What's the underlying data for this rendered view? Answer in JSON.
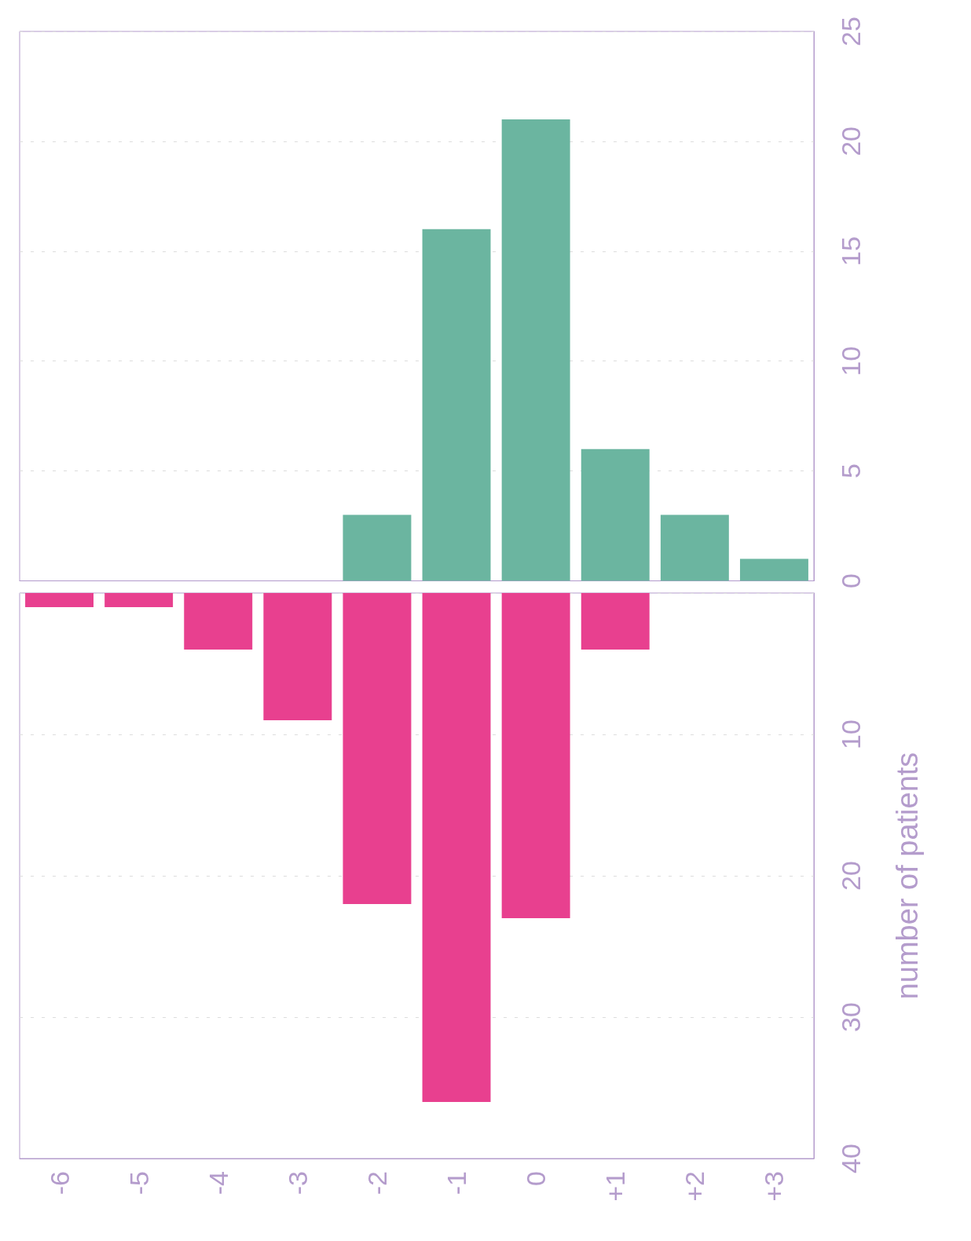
{
  "chart_data": [
    {
      "type": "bar",
      "categories": [
        "-6",
        "-5",
        "-4",
        "-3",
        "-2",
        "-1",
        "0",
        "+1",
        "+2",
        "+3"
      ],
      "values": [
        0,
        0,
        0,
        0,
        3,
        16,
        21,
        6,
        3,
        1
      ],
      "color": "#6bb5a0",
      "ylim": [
        0,
        25
      ],
      "yticks": [
        0,
        5,
        10,
        15,
        20,
        25
      ],
      "grid": "y",
      "tick_labels": "y"
    },
    {
      "type": "bar",
      "categories": [
        "-6",
        "-5",
        "-4",
        "-3",
        "-2",
        "-1",
        "0",
        "+1",
        "+2",
        "+3"
      ],
      "values": [
        1,
        1,
        4,
        9,
        22,
        36,
        23,
        4,
        0,
        0
      ],
      "color": "#e8408f",
      "ylim": [
        40,
        0
      ],
      "yticks": [
        {
          "value": 0,
          "label": null
        },
        10,
        20,
        30,
        40
      ],
      "grid": "y",
      "ylabel": "number of patients"
    }
  ]
}
